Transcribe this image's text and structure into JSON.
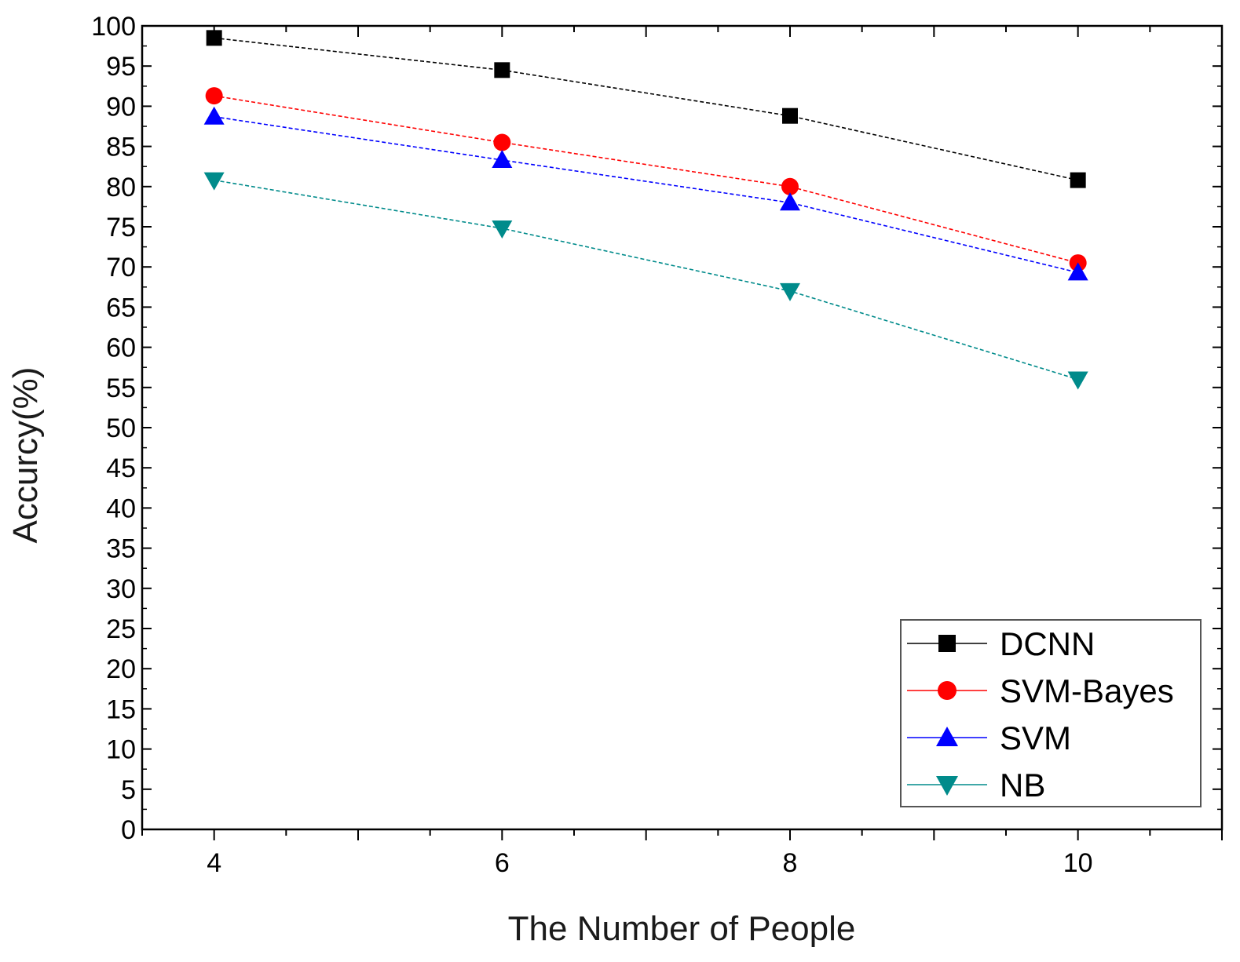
{
  "chart_data": {
    "type": "line",
    "title": "",
    "xlabel": "The Number of People",
    "ylabel": "Accurcy(%)",
    "x": [
      4,
      6,
      8,
      10
    ],
    "xlim": [
      3.5,
      11
    ],
    "ylim": [
      0,
      100
    ],
    "x_ticks": [
      "4",
      "6",
      "8",
      "10"
    ],
    "y_ticks": [
      "0",
      "5",
      "10",
      "15",
      "20",
      "25",
      "30",
      "35",
      "40",
      "45",
      "50",
      "55",
      "60",
      "65",
      "70",
      "75",
      "80",
      "85",
      "90",
      "95",
      "100"
    ],
    "grid": false,
    "legend_position": "bottom-right",
    "series": [
      {
        "name": "DCNN",
        "values": [
          98.5,
          94.5,
          88.8,
          80.8
        ],
        "color": "#000000",
        "marker": "square"
      },
      {
        "name": "SVM-Bayes",
        "values": [
          91.3,
          85.5,
          80.0,
          70.5
        ],
        "color": "#ff0000",
        "marker": "circle"
      },
      {
        "name": "SVM",
        "values": [
          88.7,
          83.3,
          78.0,
          69.3
        ],
        "color": "#0000ff",
        "marker": "triangle-up"
      },
      {
        "name": "NB",
        "values": [
          80.8,
          74.8,
          67.0,
          56.0
        ],
        "color": "#008b8b",
        "marker": "triangle-down"
      }
    ]
  }
}
